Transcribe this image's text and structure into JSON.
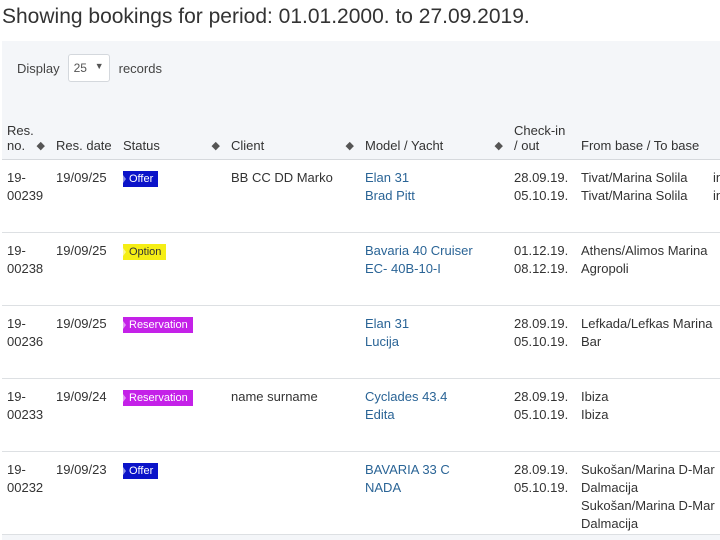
{
  "page": {
    "heading": "Showing bookings for period: 01.01.2000. to 27.09.2019."
  },
  "controls": {
    "display_label": "Display",
    "page_size": "25",
    "records_label": "records"
  },
  "table": {
    "headers": {
      "res_no": [
        "Res.",
        "no."
      ],
      "res_date": "Res. date",
      "status": "Status",
      "client": "Client",
      "model_yacht": "Model / Yacht",
      "check_in_out": [
        "Check-in",
        "/ out"
      ],
      "from_to_base": "From base / To base"
    },
    "rows": [
      {
        "res_no": [
          "19-",
          "00239"
        ],
        "res_date": "19/09/25",
        "status": "Offer",
        "client": "BB CC DD Marko",
        "model": "Elan 31",
        "yacht": "Brad Pitt",
        "check_in": "28.09.19.",
        "check_out": "05.10.19.",
        "bases": [
          "Tivat/Marina Solila",
          "Tivat/Marina Solila"
        ],
        "extra": [
          "in",
          "in"
        ]
      },
      {
        "res_no": [
          "19-",
          "00238"
        ],
        "res_date": "19/09/25",
        "status": "Option",
        "client": "",
        "model": "Bavaria 40 Cruiser",
        "yacht": "EC- 40B-10-I",
        "check_in": "01.12.19.",
        "check_out": "08.12.19.",
        "bases": [
          "Athens/Alimos Marina",
          "Agropoli"
        ],
        "extra": [
          "",
          ""
        ]
      },
      {
        "res_no": [
          "19-",
          "00236"
        ],
        "res_date": "19/09/25",
        "status": "Reservation",
        "client": "",
        "model": "Elan 31",
        "yacht": "Lucija",
        "check_in": "28.09.19.",
        "check_out": "05.10.19.",
        "bases": [
          "Lefkada/Lefkas Marina",
          "Bar"
        ],
        "extra": [
          "",
          ""
        ]
      },
      {
        "res_no": [
          "19-",
          "00233"
        ],
        "res_date": "19/09/24",
        "status": "Reservation",
        "client": "name surname",
        "model": "Cyclades 43.4",
        "yacht": "Edita",
        "check_in": "28.09.19.",
        "check_out": "05.10.19.",
        "bases": [
          "Ibiza",
          "Ibiza"
        ],
        "extra": [
          "",
          ""
        ]
      },
      {
        "res_no": [
          "19-",
          "00232"
        ],
        "res_date": "19/09/23",
        "status": "Offer",
        "client": "",
        "model": "BAVARIA 33 C",
        "yacht": "NADA",
        "check_in": "28.09.19.",
        "check_out": "05.10.19.",
        "bases": [
          "Sukošan/Marina D-Mar",
          "Dalmacija",
          "Sukošan/Marina D-Mar",
          "Dalmacija"
        ],
        "extra": [
          "",
          ""
        ]
      }
    ]
  },
  "colors": {
    "offer": "#0b13c9",
    "option": "#f5ee15",
    "reservation": "#c421e8",
    "link": "#2a6496"
  },
  "icons": {
    "sort": "sort-icon",
    "select_caret": "chevron-down-icon"
  }
}
